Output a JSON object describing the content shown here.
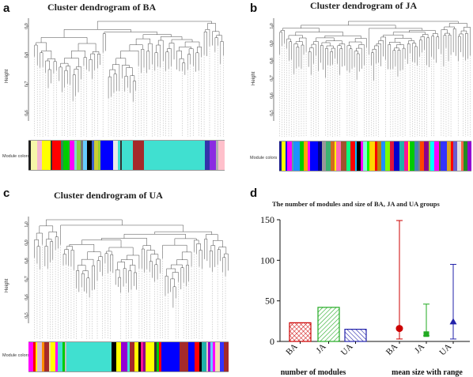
{
  "panels": {
    "a": {
      "letter": "a",
      "title": "Cluster dendrogram of BA",
      "ylabel": "Height",
      "yticks": [
        "0.9",
        "0.8",
        "0.7",
        "0.6"
      ],
      "modcolors_label": "Module colors",
      "colors": [
        [
          "#222222",
          1
        ],
        [
          "#f6f6a8",
          3
        ],
        [
          "#f5b8d0",
          2
        ],
        [
          "#ffff00",
          4
        ],
        [
          "#333333",
          1
        ],
        [
          "#ff0000",
          4
        ],
        [
          "#2e8b57",
          1
        ],
        [
          "#00cc00",
          3
        ],
        [
          "#ff00ff",
          2
        ],
        [
          "#7dd8c8",
          1
        ],
        [
          "#88cc44",
          2
        ],
        [
          "#777777",
          1
        ],
        [
          "#66ccff",
          2
        ],
        [
          "#000000",
          2
        ],
        [
          "#3a5fcd",
          1
        ],
        [
          "#cccc33",
          2
        ],
        [
          "#9acd32",
          1
        ],
        [
          "#0000ff",
          6
        ],
        [
          "#e8e8e8",
          2
        ],
        [
          "#40e0d0",
          1
        ],
        [
          "#333333",
          1
        ],
        [
          "#40e0d0",
          5
        ],
        [
          "#a52a2a",
          5
        ],
        [
          "#40e0d0",
          28
        ],
        [
          "#3333aa",
          2
        ],
        [
          "#8b2be2",
          3
        ],
        [
          "#b0b0b0",
          1
        ],
        [
          "#ffc0cb",
          3
        ]
      ]
    },
    "b": {
      "letter": "b",
      "title": "Cluster dendrogram of JA",
      "ylabel": "Height",
      "yticks": [
        "1.0",
        "0.9",
        "0.8",
        "0.7",
        "0.6",
        "0.5"
      ],
      "modcolors_label": "Module colors",
      "colors": [
        [
          "#1a1a8a",
          1
        ],
        [
          "#ffff00",
          2
        ],
        [
          "#0000ff",
          1
        ],
        [
          "#ff00ff",
          2
        ],
        [
          "#5f9ea0",
          1
        ],
        [
          "#1e90ff",
          3
        ],
        [
          "#00cc00",
          2
        ],
        [
          "#ffa500",
          2
        ],
        [
          "#ff00ff",
          1
        ],
        [
          "#0000ff",
          4
        ],
        [
          "#00008b",
          2
        ],
        [
          "#999999",
          2
        ],
        [
          "#3cb371",
          2
        ],
        [
          "#d2691e",
          2
        ],
        [
          "#ffff00",
          1
        ],
        [
          "#ff69b4",
          2
        ],
        [
          "#a0522d",
          3
        ],
        [
          "#00ff7f",
          2
        ],
        [
          "#ff0000",
          2
        ],
        [
          "#00bfff",
          1
        ],
        [
          "#000000",
          2
        ],
        [
          "#ff00ff",
          1
        ],
        [
          "#7fffd4",
          2
        ],
        [
          "#00ff00",
          1
        ],
        [
          "#ffd700",
          3
        ],
        [
          "#ff0000",
          1
        ],
        [
          "#b8860b",
          2
        ],
        [
          "#1e90ff",
          2
        ],
        [
          "#7cfc00",
          2
        ],
        [
          "#dc143c",
          2
        ],
        [
          "#0000cd",
          3
        ],
        [
          "#20b2aa",
          2
        ],
        [
          "#ff1493",
          2
        ],
        [
          "#ffff00",
          1
        ],
        [
          "#00cc00",
          2
        ],
        [
          "#4682b4",
          2
        ],
        [
          "#808080",
          1
        ],
        [
          "#ff4500",
          2
        ],
        [
          "#8b008b",
          2
        ],
        [
          "#9acd32",
          1
        ],
        [
          "#00ffff",
          2
        ],
        [
          "#ff00ff",
          2
        ],
        [
          "#556b2f",
          1
        ],
        [
          "#3333ff",
          3
        ],
        [
          "#daa520",
          2
        ],
        [
          "#ff0000",
          1
        ],
        [
          "#6a5acd",
          2
        ],
        [
          "#e0e0e0",
          2
        ],
        [
          "#ff6347",
          1
        ],
        [
          "#228b22",
          2
        ],
        [
          "#9400d3",
          2
        ]
      ]
    },
    "c": {
      "letter": "c",
      "title": "Cluster dendrogram of UA",
      "ylabel": "Height",
      "yticks": [
        "1.0",
        "0.9",
        "0.8",
        "0.7",
        "0.6",
        "0.5"
      ],
      "modcolors_label": "Module colors",
      "colors": [
        [
          "#ff00ff",
          2
        ],
        [
          "#ff0000",
          1
        ],
        [
          "#ffff00",
          1
        ],
        [
          "#d8bfd8",
          2
        ],
        [
          "#ff8c00",
          1
        ],
        [
          "#a52a2a",
          2
        ],
        [
          "#f0e68c",
          1
        ],
        [
          "#ffff00",
          2
        ],
        [
          "#ff00ff",
          1
        ],
        [
          "#40e0d0",
          2
        ],
        [
          "#00cc00",
          1
        ],
        [
          "#c0c0c0",
          1
        ],
        [
          "#40e0d0",
          20
        ],
        [
          "#000000",
          2
        ],
        [
          "#ffff00",
          2
        ],
        [
          "#9400d3",
          3
        ],
        [
          "#40e0d0",
          1
        ],
        [
          "#a52a2a",
          2
        ],
        [
          "#ffff00",
          2
        ],
        [
          "#000000",
          1
        ],
        [
          "#ff1493",
          1
        ],
        [
          "#8b008b",
          1
        ],
        [
          "#ffff00",
          4
        ],
        [
          "#333333",
          1
        ],
        [
          "#00cc00",
          1
        ],
        [
          "#ff0000",
          1
        ],
        [
          "#0000ff",
          8
        ],
        [
          "#a52a2a",
          4
        ],
        [
          "#0000ff",
          3
        ],
        [
          "#ff0000",
          2
        ],
        [
          "#000000",
          1
        ],
        [
          "#20b2aa",
          2
        ],
        [
          "#ffc0cb",
          1
        ],
        [
          "#9400d3",
          1
        ],
        [
          "#66ccff",
          1
        ],
        [
          "#ff00ff",
          1
        ],
        [
          "#f5deb3",
          2
        ],
        [
          "#3333ff",
          2
        ],
        [
          "#a52a2a",
          2
        ]
      ]
    },
    "d": {
      "letter": "d",
      "title": "The number of modules and size of BA, JA and UA groups",
      "xlabel_left": "number of modules",
      "xlabel_right": "mean size with range"
    }
  },
  "chart_data": {
    "type": "bar",
    "title": "The number of modules and size of BA, JA and UA groups",
    "ylim": [
      0,
      150
    ],
    "yticks": [
      0,
      50,
      100,
      150
    ],
    "groups": [
      {
        "name": "number of modules",
        "categories": [
          "BA",
          "JA",
          "UA"
        ],
        "values": [
          23,
          42,
          15
        ],
        "colors": [
          "#cc0000",
          "#22aa22",
          "#2222aa"
        ]
      },
      {
        "name": "mean size with range",
        "categories": [
          "BA",
          "JA",
          "UA"
        ],
        "mean": [
          16,
          9,
          24
        ],
        "min": [
          3,
          7,
          3
        ],
        "max": [
          149,
          46,
          95
        ],
        "colors": [
          "#cc0000",
          "#22aa22",
          "#2222aa"
        ],
        "markers": [
          "circle",
          "square",
          "triangle"
        ]
      }
    ]
  }
}
